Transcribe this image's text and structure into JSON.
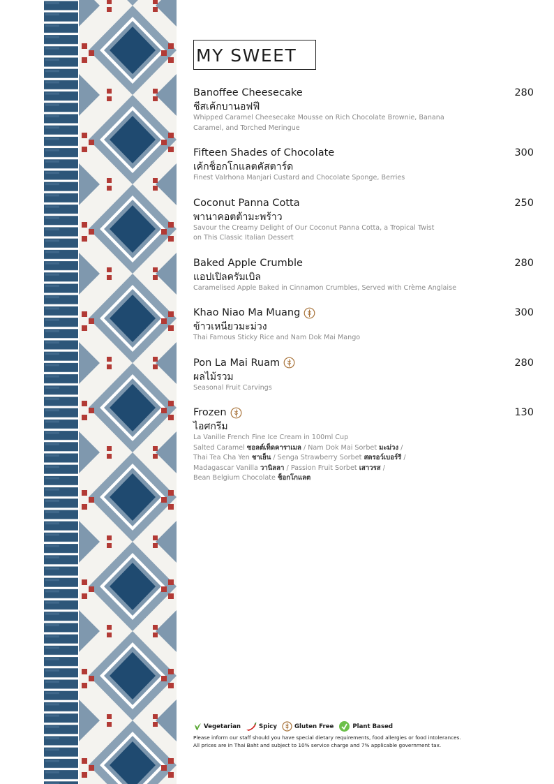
{
  "header": {
    "title": "MY SWEET"
  },
  "items": [
    {
      "name": "Banoffee Cheesecake",
      "thai": "ชีสเค้กบานอฟฟี",
      "price": "280",
      "gluten_free": false,
      "description": [
        "Whipped Caramel Cheesecake Mousse on Rich Chocolate Brownie, Banana",
        "Caramel, and Torched Meringue"
      ]
    },
    {
      "name": "Fifteen Shades of Chocolate",
      "thai": "เค้กช็อกโกแลตคัสตาร์ด",
      "price": "300",
      "gluten_free": false,
      "description": [
        "Finest Valrhona Manjari Custard and Chocolate Sponge, Berries"
      ]
    },
    {
      "name": "Coconut Panna Cotta",
      "thai": "พานาคอตต้ามะพร้าว",
      "price": "250",
      "gluten_free": false,
      "description": [
        "Savour the Creamy Delight of Our Coconut Panna Cotta, a Tropical Twist",
        "on This Classic Italian Dessert"
      ]
    },
    {
      "name": "Baked Apple Crumble",
      "thai": "แอปเปิลครัมเบิล",
      "price": "280",
      "gluten_free": false,
      "description": [
        "Caramelised Apple Baked in Cinnamon Crumbles, Served with Crème Anglaise"
      ]
    },
    {
      "name": "Khao Niao Ma Muang",
      "thai": "ข้าวเหนียวมะม่วง",
      "price": "300",
      "gluten_free": true,
      "description": [
        "Thai Famous Sticky Rice and Nam Dok Mai Mango"
      ]
    },
    {
      "name": "Pon La Mai Ruam",
      "thai": "ผลไม้รวม",
      "price": "280",
      "gluten_free": true,
      "description": [
        "Seasonal Fruit Carvings"
      ]
    },
    {
      "name": "Frozen",
      "thai": "ไอศกรีม",
      "price": "130",
      "gluten_free": true,
      "description": [
        "La Vanille French Fine Ice Cream in 100ml Cup"
      ],
      "separator": "/",
      "flavors": [
        {
          "en": "Salted Caramel",
          "th": "ซอลต์เท็ดคาราเมล"
        },
        {
          "en": "Nam Dok Mai Sorbet",
          "th": "มะม่วง"
        },
        {
          "en": "Thai Tea Cha Yen",
          "th": "ชาเย็น"
        },
        {
          "en": "Senga Strawberry Sorbet",
          "th": "สตรอว์เบอร์รี"
        },
        {
          "en": "Madagascar Vanilla",
          "th": "วานิลลา"
        },
        {
          "en": "Passion Fruit Sorbet",
          "th": "เสาวรส"
        },
        {
          "en": "Bean Belgium Chocolate",
          "th": "ช็อกโกแลต"
        }
      ]
    }
  ],
  "legend": {
    "vegetarian": "Vegetarian",
    "spicy": "Spicy",
    "gluten_free": "Gluten Free",
    "plant_based": "Plant Based"
  },
  "notes": [
    "Please inform our staff should you have special dietary requirements, food allergies or food intolerances.",
    "All prices are in Thai Baht and subject to 10% service charge and 7% applicable government tax."
  ]
}
